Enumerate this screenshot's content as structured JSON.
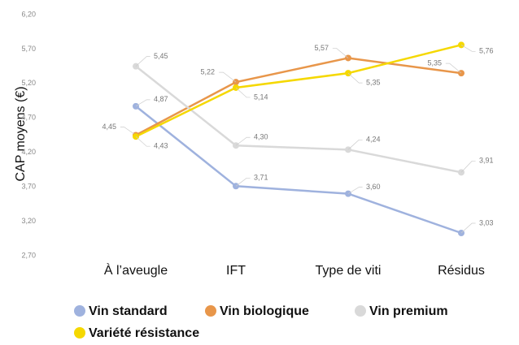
{
  "chart_data": {
    "type": "line",
    "ylabel": "CAP moyens (€)",
    "categories": [
      "À l’aveugle",
      "IFT",
      "Type de viti",
      "Résidus"
    ],
    "ylim": [
      2.7,
      6.2
    ],
    "yticks": [
      {
        "value": 2.7,
        "label": "2,70"
      },
      {
        "value": 3.2,
        "label": "3,20"
      },
      {
        "value": 3.7,
        "label": "3,70"
      },
      {
        "value": 4.2,
        "label": "4,20"
      },
      {
        "value": 4.7,
        "label": "4,70"
      },
      {
        "value": 5.2,
        "label": "5,20"
      },
      {
        "value": 5.7,
        "label": "5,70"
      },
      {
        "value": 6.2,
        "label": "6,20"
      }
    ],
    "grid": false,
    "series": [
      {
        "name": "Vin standard",
        "color": "#9fb2de",
        "values": [
          4.87,
          3.71,
          3.6,
          3.03
        ],
        "value_labels": [
          "4,87",
          "3,71",
          "3,60",
          "3,03"
        ]
      },
      {
        "name": "Vin biologique",
        "color": "#e8964a",
        "values": [
          4.45,
          5.22,
          5.57,
          5.35
        ],
        "value_labels": [
          "4,45",
          "5,22",
          "5,57",
          "5,35"
        ]
      },
      {
        "name": "Vin premium",
        "color": "#d9d9d9",
        "values": [
          5.45,
          4.3,
          4.24,
          3.91
        ],
        "value_labels": [
          "5,45",
          "4,30",
          "4,24",
          "3,91"
        ]
      },
      {
        "name": "Variété résistance",
        "color": "#f5d800",
        "values": [
          4.43,
          5.14,
          5.35,
          5.76
        ],
        "value_labels": [
          "4,43",
          "5,14",
          "5,35",
          "5,76"
        ]
      }
    ]
  }
}
